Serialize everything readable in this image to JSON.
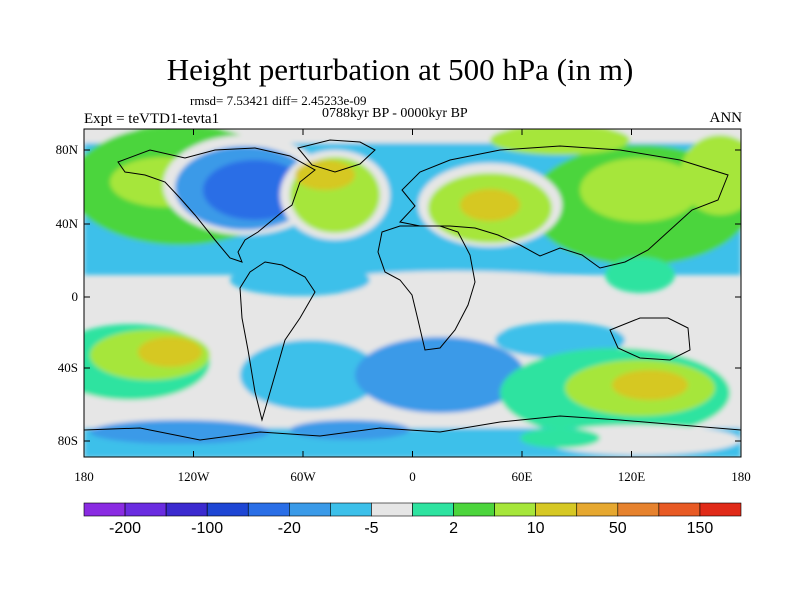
{
  "title": "Height perturbation at 500 hPa (in m)",
  "stats": "rmsd= 7.53421 diff= 2.45233e-09",
  "experiment": "Expt = teVTD1-tevta1",
  "period": "0788kyr BP - 0000kyr BP",
  "season": "ANN",
  "axes": {
    "lat_ticks": [
      "80N",
      "40N",
      "0",
      "40S",
      "80S"
    ],
    "lon_ticks": [
      "180",
      "120W",
      "60W",
      "0",
      "60E",
      "120E",
      "180"
    ]
  },
  "colorbar": {
    "colors": [
      "#8a2be2",
      "#6a2ce0",
      "#3b2acf",
      "#1e46d4",
      "#2a6ee6",
      "#3a9ae8",
      "#3cc0ea",
      "#e6e6e6",
      "#2ee3a0",
      "#4cd53c",
      "#a6e63a",
      "#d6c824",
      "#e6a830",
      "#e6822e",
      "#e85a24",
      "#e02a18"
    ],
    "labels": [
      "-200",
      "-100",
      "-20",
      "-5",
      "2",
      "10",
      "50",
      "150"
    ]
  }
}
